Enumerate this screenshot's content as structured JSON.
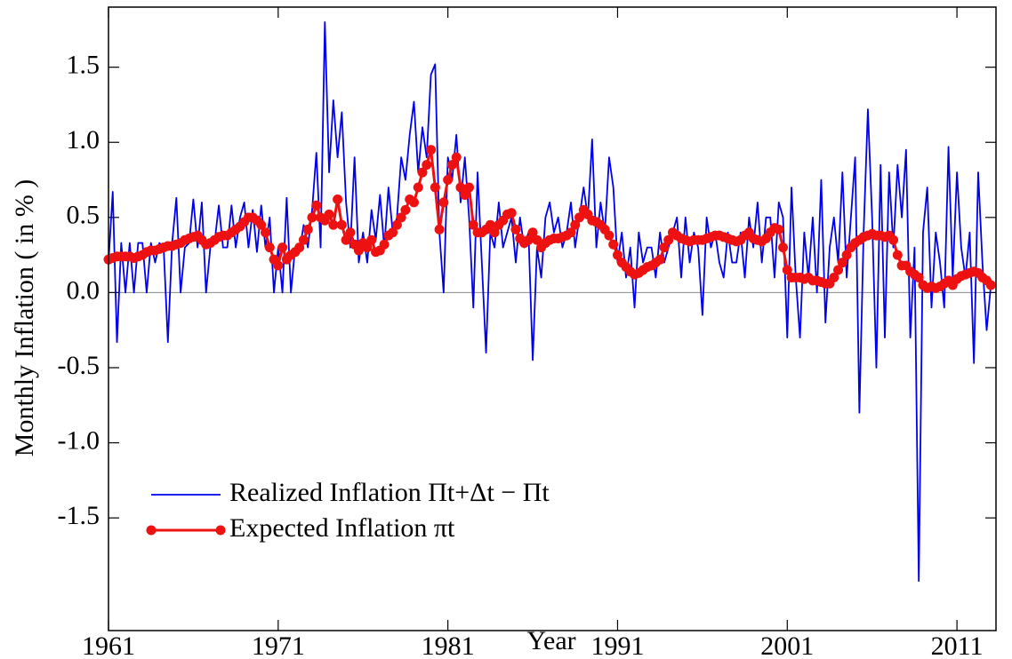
{
  "chart_data": {
    "type": "line",
    "x_label": "Year",
    "y_label": "Monthly Inflation ( in % )",
    "xlim": [
      1961,
      2013.3
    ],
    "ylim": [
      -2.25,
      1.9
    ],
    "xticks": [
      1961,
      1971,
      1981,
      1991,
      2001,
      2011
    ],
    "yticks": [
      1.5,
      {
        "value": 1.0,
        "label": "1.0"
      },
      0.5,
      {
        "value": 0.0,
        "label": "0.0"
      },
      -0.5,
      {
        "value": -1.0,
        "label": "-1.0"
      },
      -1.5
    ],
    "legend": "lower left",
    "x": [
      1961,
      1961.25,
      1961.5,
      1961.75,
      1962,
      1962.25,
      1962.5,
      1962.75,
      1963,
      1963.25,
      1963.5,
      1963.75,
      1964,
      1964.25,
      1964.5,
      1964.75,
      1965,
      1965.25,
      1965.5,
      1965.75,
      1966,
      1966.25,
      1966.5,
      1966.75,
      1967,
      1967.25,
      1967.5,
      1967.75,
      1968,
      1968.25,
      1968.5,
      1968.75,
      1969,
      1969.25,
      1969.5,
      1969.75,
      1970,
      1970.25,
      1970.5,
      1970.75,
      1971,
      1971.25,
      1971.5,
      1971.75,
      1972,
      1972.25,
      1972.5,
      1972.75,
      1973,
      1973.25,
      1973.5,
      1973.75,
      1974,
      1974.25,
      1974.5,
      1974.75,
      1975,
      1975.25,
      1975.5,
      1975.75,
      1976,
      1976.25,
      1976.5,
      1976.75,
      1977,
      1977.25,
      1977.5,
      1977.75,
      1978,
      1978.25,
      1978.5,
      1978.75,
      1979,
      1979.25,
      1979.5,
      1979.75,
      1980,
      1980.25,
      1980.5,
      1980.75,
      1981,
      1981.25,
      1981.5,
      1981.75,
      1982,
      1982.25,
      1982.5,
      1982.75,
      1983,
      1983.25,
      1983.5,
      1983.75,
      1984,
      1984.25,
      1984.5,
      1984.75,
      1985,
      1985.25,
      1985.5,
      1985.75,
      1986,
      1986.25,
      1986.5,
      1986.75,
      1987,
      1987.25,
      1987.5,
      1987.75,
      1988,
      1988.25,
      1988.5,
      1988.75,
      1989,
      1989.25,
      1989.5,
      1989.75,
      1990,
      1990.25,
      1990.5,
      1990.75,
      1991,
      1991.25,
      1991.5,
      1991.75,
      1992,
      1992.25,
      1992.5,
      1992.75,
      1993,
      1993.25,
      1993.5,
      1993.75,
      1994,
      1994.25,
      1994.5,
      1994.75,
      1995,
      1995.25,
      1995.5,
      1995.75,
      1996,
      1996.25,
      1996.5,
      1996.75,
      1997,
      1997.25,
      1997.5,
      1997.75,
      1998,
      1998.25,
      1998.5,
      1998.75,
      1999,
      1999.25,
      1999.5,
      1999.75,
      2000,
      2000.25,
      2000.5,
      2000.75,
      2001,
      2001.25,
      2001.5,
      2001.75,
      2002,
      2002.25,
      2002.5,
      2002.75,
      2003,
      2003.25,
      2003.5,
      2003.75,
      2004,
      2004.25,
      2004.5,
      2004.75,
      2005,
      2005.25,
      2005.5,
      2005.75,
      2006,
      2006.25,
      2006.5,
      2006.75,
      2007,
      2007.25,
      2007.5,
      2007.75,
      2008,
      2008.25,
      2008.5,
      2008.75,
      2009,
      2009.25,
      2009.5,
      2009.75,
      2010,
      2010.25,
      2010.5,
      2010.75,
      2011,
      2011.25,
      2011.5,
      2011.75,
      2012,
      2012.25,
      2012.5,
      2012.75,
      2013
    ],
    "series": [
      {
        "name": "Realized Inflation Πt+Δt − Πt",
        "color": "#0000ee",
        "markers": false,
        "values": [
          0.2,
          0.67,
          -0.33,
          0.33,
          0,
          0.33,
          0,
          0.33,
          0.33,
          0,
          0.33,
          0.2,
          0.33,
          0.3,
          -0.33,
          0.33,
          0.63,
          0,
          0.3,
          0.33,
          0.62,
          0.3,
          0.6,
          0,
          0.3,
          0.33,
          0.58,
          0.3,
          0.3,
          0.58,
          0.3,
          0.5,
          0.6,
          0.3,
          0.55,
          0.27,
          0.58,
          0.3,
          0.5,
          0,
          0.3,
          0,
          0.63,
          0,
          0.3,
          0.27,
          0.45,
          0.3,
          0.55,
          0.93,
          0.3,
          1.8,
          0.8,
          1.28,
          0.9,
          1.2,
          0.6,
          0.3,
          0.9,
          0.2,
          0.4,
          0.2,
          0.55,
          0.35,
          0.65,
          0.3,
          0.7,
          0.4,
          0.5,
          0.9,
          0.75,
          1.05,
          1.27,
          0.8,
          1.1,
          0.9,
          1.45,
          1.52,
          0.4,
          0,
          0.9,
          0.75,
          1.05,
          0.6,
          0.9,
          0.5,
          -0.1,
          0.8,
          0.2,
          -0.4,
          0.4,
          0.3,
          0.6,
          0.3,
          0.4,
          0.5,
          0.2,
          0.5,
          0.3,
          0.4,
          -0.45,
          0.3,
          0.1,
          0.5,
          0.6,
          0.4,
          0.5,
          0.3,
          0.4,
          0.6,
          0.3,
          0.5,
          0.7,
          0.5,
          1.02,
          0.3,
          0.6,
          0.4,
          0.9,
          0.7,
          0.2,
          0.4,
          0.1,
          0.3,
          -0.1,
          0.4,
          0.2,
          0.3,
          0.3,
          0.1,
          0.4,
          0.2,
          0.3,
          0.4,
          0.5,
          0.1,
          0.5,
          0.2,
          0.4,
          0.3,
          -0.15,
          0.5,
          0.3,
          0.4,
          0.2,
          0.1,
          0.4,
          0.2,
          0.2,
          0.4,
          0.1,
          0.5,
          0.3,
          0.6,
          0.2,
          0.5,
          0.5,
          0.1,
          0.6,
          0.5,
          -0.3,
          0.7,
          0.1,
          -0.3,
          0.4,
          0.1,
          0.5,
          0,
          0.75,
          -0.2,
          0.3,
          0.5,
          0.2,
          0.8,
          0.1,
          0.5,
          0.9,
          -0.8,
          0.4,
          1.22,
          0.5,
          -0.5,
          0.85,
          -0.3,
          0.8,
          0.3,
          0.85,
          0.5,
          0.95,
          -0.3,
          0.3,
          -1.92,
          0.4,
          0.7,
          -0.1,
          0.4,
          0.2,
          -0.1,
          0.97,
          0.1,
          0.8,
          0.3,
          0.1,
          0.4,
          -0.47,
          0.8,
          0.2,
          -0.25,
          0.05
        ]
      },
      {
        "name": "Expected Inflation πt",
        "color": "#ee1111",
        "markers": true,
        "values": [
          0.22,
          0.23,
          0.24,
          0.24,
          0.24,
          0.24,
          0.23,
          0.24,
          0.25,
          0.27,
          0.28,
          0.28,
          0.29,
          0.3,
          0.31,
          0.31,
          0.32,
          0.33,
          0.35,
          0.36,
          0.37,
          0.38,
          0.35,
          0.32,
          0.33,
          0.35,
          0.37,
          0.38,
          0.38,
          0.4,
          0.42,
          0.44,
          0.47,
          0.5,
          0.5,
          0.48,
          0.45,
          0.4,
          0.3,
          0.22,
          0.18,
          0.3,
          0.22,
          0.25,
          0.27,
          0.3,
          0.35,
          0.42,
          0.5,
          0.58,
          0.5,
          0.48,
          0.52,
          0.45,
          0.62,
          0.45,
          0.35,
          0.4,
          0.32,
          0.28,
          0.33,
          0.3,
          0.35,
          0.27,
          0.28,
          0.32,
          0.38,
          0.4,
          0.45,
          0.5,
          0.55,
          0.62,
          0.6,
          0.7,
          0.8,
          0.85,
          0.95,
          0.7,
          0.42,
          0.6,
          0.75,
          0.85,
          0.9,
          0.7,
          0.65,
          0.7,
          0.45,
          0.4,
          0.4,
          0.42,
          0.45,
          0.4,
          0.45,
          0.48,
          0.52,
          0.53,
          0.42,
          0.36,
          0.33,
          0.35,
          0.4,
          0.35,
          0.3,
          0.33,
          0.35,
          0.36,
          0.36,
          0.37,
          0.38,
          0.4,
          0.45,
          0.5,
          0.55,
          0.52,
          0.48,
          0.47,
          0.45,
          0.42,
          0.38,
          0.32,
          0.25,
          0.2,
          0.17,
          0.14,
          0.12,
          0.13,
          0.15,
          0.17,
          0.18,
          0.2,
          0.22,
          0.3,
          0.35,
          0.4,
          0.38,
          0.36,
          0.35,
          0.34,
          0.35,
          0.35,
          0.35,
          0.36,
          0.37,
          0.38,
          0.38,
          0.37,
          0.36,
          0.35,
          0.34,
          0.35,
          0.38,
          0.4,
          0.36,
          0.35,
          0.34,
          0.36,
          0.4,
          0.43,
          0.42,
          0.3,
          0.15,
          0.1,
          0.1,
          0.1,
          0.09,
          0.1,
          0.08,
          0.08,
          0.07,
          0.06,
          0.06,
          0.1,
          0.15,
          0.2,
          0.25,
          0.3,
          0.33,
          0.35,
          0.37,
          0.38,
          0.39,
          0.38,
          0.38,
          0.37,
          0.38,
          0.35,
          0.25,
          0.18,
          0.18,
          0.14,
          0.12,
          0.1,
          0.05,
          0.03,
          0.04,
          0.03,
          0.04,
          0.06,
          0.08,
          0.05,
          0.09,
          0.11,
          0.12,
          0.13,
          0.14,
          0.13,
          0.1,
          0.08,
          0.05
        ]
      }
    ]
  }
}
